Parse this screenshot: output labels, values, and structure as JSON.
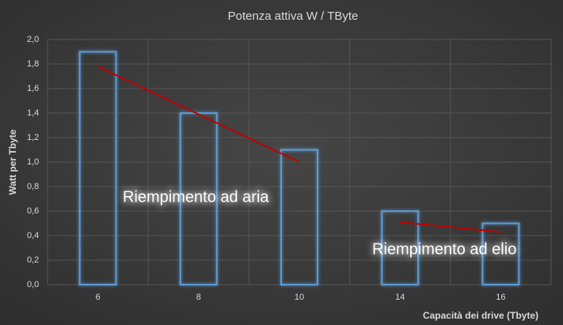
{
  "chart_data": {
    "type": "bar",
    "title": "Potenza attiva W / TByte",
    "y_label": "Watt per Tbyte",
    "x_label": "Capacità dei drive (Tbyte)",
    "categories": [
      6,
      8,
      10,
      14,
      16
    ],
    "values": [
      1.9,
      1.4,
      1.1,
      0.6,
      0.5
    ],
    "color": "#5b9bd5",
    "ylim": [
      0,
      2
    ],
    "yticks": [
      {
        "value": 0,
        "label": "0,0"
      },
      {
        "value": 0.2,
        "label": "0,2"
      },
      {
        "value": 0.4,
        "label": "0,4"
      },
      {
        "value": 0.6,
        "label": "0,6"
      },
      {
        "value": 0.8,
        "label": "0,8"
      },
      {
        "value": 1,
        "label": "1,0"
      },
      {
        "value": 1.2,
        "label": "1,2"
      },
      {
        "value": 1.4,
        "label": "1,4"
      },
      {
        "value": 1.6,
        "label": "1,6"
      },
      {
        "value": 1.8,
        "label": "1,8"
      },
      {
        "value": 2,
        "label": "2,0"
      }
    ],
    "grid": true,
    "trend_lines": [
      {
        "x": [
          6,
          10
        ],
        "values": [
          1.78,
          1.0
        ],
        "color": "#c00000"
      },
      {
        "x": [
          14,
          16
        ],
        "values": [
          0.51,
          0.43
        ],
        "color": "#c00000"
      }
    ],
    "annotations": [
      "Riempimento ad aria",
      "Riempimento ad elio"
    ]
  }
}
